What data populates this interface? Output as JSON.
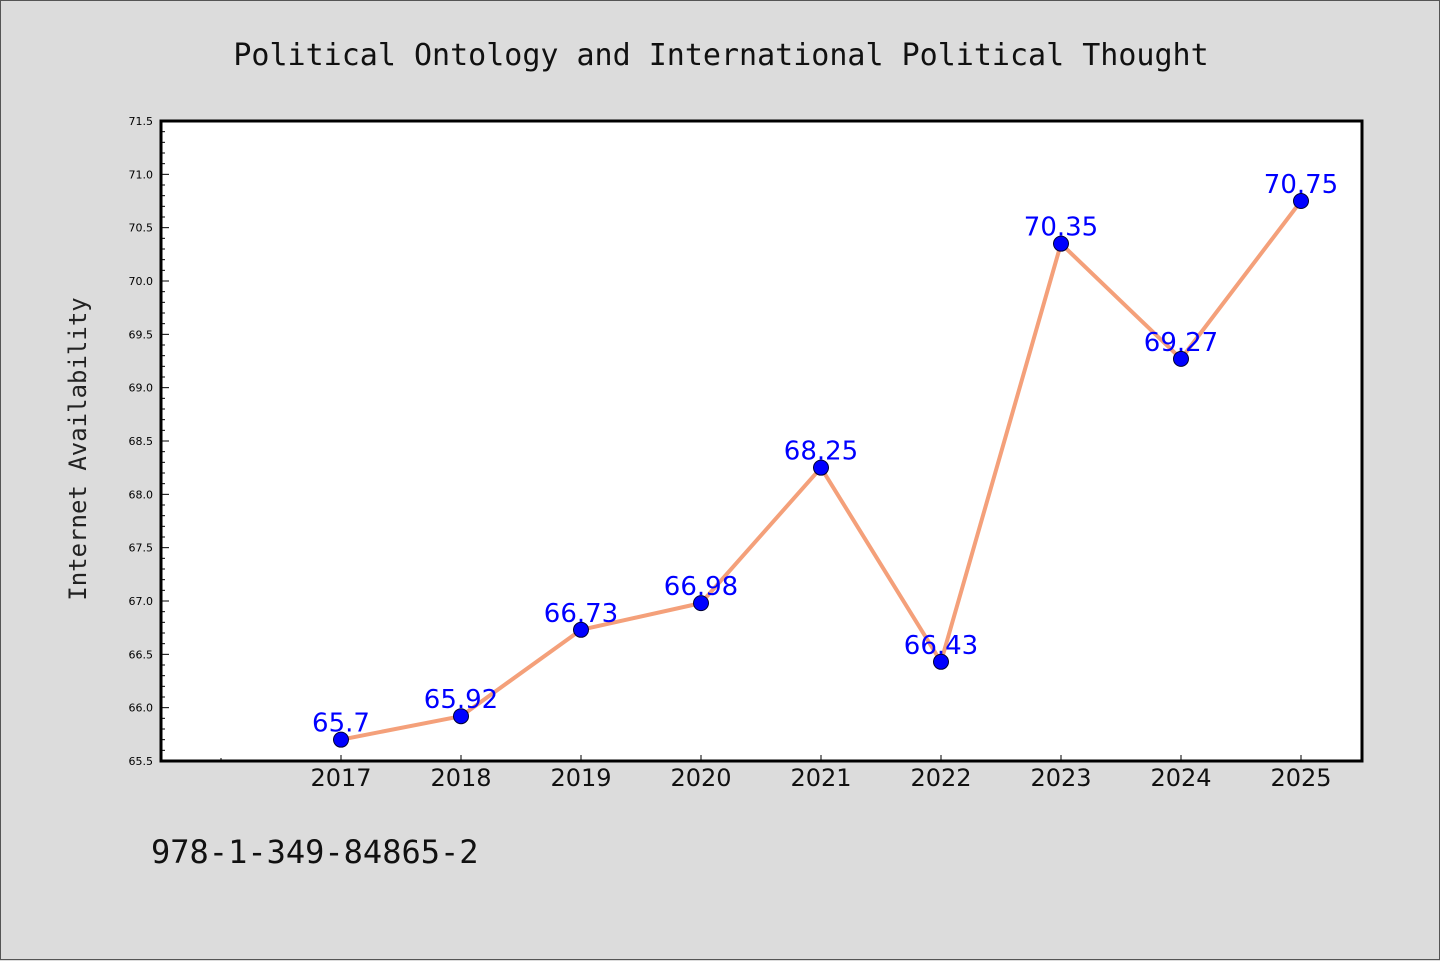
{
  "chart_data": {
    "type": "line",
    "title": "Political Ontology and International Political Thought",
    "xlabel": "",
    "ylabel": "Internet Availability",
    "categories": [
      "2017",
      "2018",
      "2019",
      "2020",
      "2021",
      "2022",
      "2023",
      "2024",
      "2025"
    ],
    "series": [
      {
        "values": [
          65.7,
          65.92,
          66.73,
          66.98,
          68.25,
          66.43,
          70.35,
          69.27,
          70.75
        ],
        "data_labels": [
          "65.7",
          "65.92",
          "66.73",
          "66.98",
          "68.25",
          "66.43",
          "70.35",
          "69.27",
          "70.75"
        ],
        "line_color": "#f4a07a",
        "marker_color": "#0000ff"
      }
    ],
    "ylim": [
      65.5,
      71.5
    ],
    "yticks": [
      "65.5",
      "66.0",
      "66.5",
      "67.0",
      "67.5",
      "68.0",
      "68.5",
      "69.0",
      "69.5",
      "70.0",
      "70.5",
      "71.0",
      "71.5"
    ],
    "grid": false,
    "legend": "none"
  },
  "footer": {
    "code": "978-1-349-84865-2"
  },
  "colors": {
    "background": "#dcdcdc",
    "plot_background": "#ffffff",
    "label_color": "#0000ff"
  }
}
